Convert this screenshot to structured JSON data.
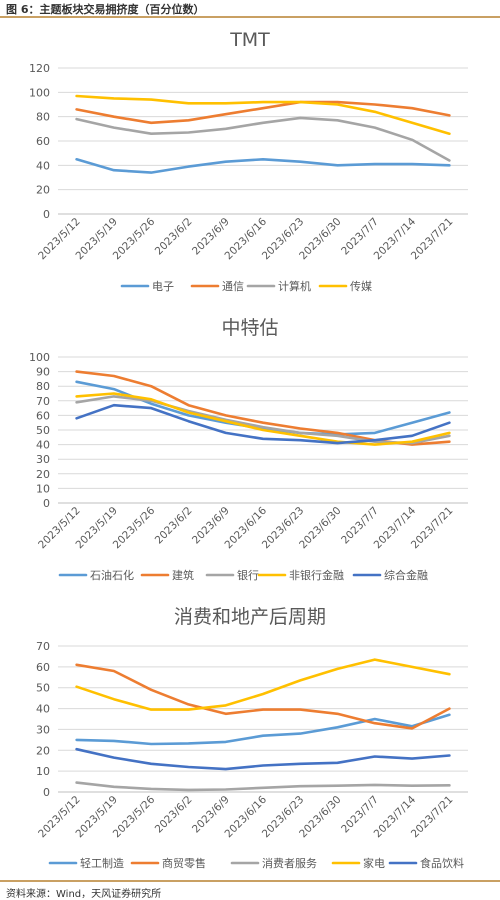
{
  "header": {
    "title": "图 6：主题板块交易拥挤度（百分位数）"
  },
  "footer": {
    "source": "资料来源：Wind，天风证券研究所"
  },
  "chart_data": [
    {
      "type": "line",
      "title": "TMT",
      "categories": [
        "2023/5/12",
        "2023/5/19",
        "2023/5/26",
        "2023/6/2",
        "2023/6/9",
        "2023/6/16",
        "2023/6/23",
        "2023/6/30",
        "2023/7/7",
        "2023/7/14",
        "2023/7/21"
      ],
      "ylim": [
        0,
        120
      ],
      "yticks": [
        0,
        20,
        40,
        60,
        80,
        100,
        120
      ],
      "grid": true,
      "legend_position": "bottom",
      "series": [
        {
          "name": "电子",
          "color": "#5b9bd5",
          "values": [
            45,
            36,
            34,
            39,
            43,
            45,
            43,
            40,
            41,
            41,
            40
          ]
        },
        {
          "name": "通信",
          "color": "#ed7d31",
          "values": [
            86,
            80,
            75,
            77,
            82,
            87,
            92,
            92,
            90,
            87,
            81
          ]
        },
        {
          "name": "计算机",
          "color": "#a5a5a5",
          "values": [
            78,
            71,
            66,
            67,
            70,
            75,
            79,
            77,
            71,
            61,
            44
          ]
        },
        {
          "name": "传媒",
          "color": "#ffc000",
          "values": [
            97,
            95,
            94,
            91,
            91,
            92,
            92,
            90,
            84,
            75,
            66
          ]
        }
      ]
    },
    {
      "type": "line",
      "title": "中特估",
      "categories": [
        "2023/5/12",
        "2023/5/19",
        "2023/5/26",
        "2023/6/2",
        "2023/6/9",
        "2023/6/16",
        "2023/6/23",
        "2023/6/30",
        "2023/7/7",
        "2023/7/14",
        "2023/7/21"
      ],
      "ylim": [
        0,
        100
      ],
      "yticks": [
        0,
        10,
        20,
        30,
        40,
        50,
        60,
        70,
        80,
        90,
        100
      ],
      "grid": true,
      "legend_position": "bottom",
      "series": [
        {
          "name": "石油石化",
          "color": "#5b9bd5",
          "values": [
            83,
            78,
            68,
            60,
            55,
            51,
            48,
            47,
            48,
            55,
            62
          ]
        },
        {
          "name": "建筑",
          "color": "#ed7d31",
          "values": [
            90,
            87,
            80,
            67,
            60,
            55,
            51,
            48,
            43,
            40,
            42
          ]
        },
        {
          "name": "银行",
          "color": "#a5a5a5",
          "values": [
            69,
            73,
            70,
            63,
            57,
            52,
            48,
            46,
            42,
            41,
            46
          ]
        },
        {
          "name": "非银行金融",
          "color": "#ffc000",
          "values": [
            73,
            75,
            71,
            62,
            56,
            50,
            46,
            42,
            40,
            42,
            48
          ]
        },
        {
          "name": "综合金融",
          "color": "#4472c4",
          "values": [
            58,
            67,
            65,
            56,
            48,
            44,
            43,
            41,
            43,
            46,
            55
          ]
        }
      ]
    },
    {
      "type": "line",
      "title": "消费和地产后周期",
      "categories": [
        "2023/5/12",
        "2023/5/19",
        "2023/5/26",
        "2023/6/2",
        "2023/6/9",
        "2023/6/16",
        "2023/6/23",
        "2023/6/30",
        "2023/7/7",
        "2023/7/14",
        "2023/7/21"
      ],
      "ylim": [
        0,
        70
      ],
      "yticks": [
        0,
        10,
        20,
        30,
        40,
        50,
        60,
        70
      ],
      "grid": true,
      "legend_position": "bottom",
      "series": [
        {
          "name": "轻工制造",
          "color": "#5b9bd5",
          "values": [
            25,
            24.5,
            23,
            23.3,
            24,
            27,
            28,
            31,
            35,
            31.5,
            37
          ]
        },
        {
          "name": "商贸零售",
          "color": "#ed7d31",
          "values": [
            61,
            58,
            49,
            42,
            37.5,
            39.5,
            39.5,
            37.5,
            33,
            30.5,
            40
          ]
        },
        {
          "name": "消费者服务",
          "color": "#a5a5a5",
          "values": [
            4.5,
            2.5,
            1.5,
            1.0,
            1.2,
            2.0,
            2.8,
            3.0,
            3.4,
            3.0,
            3.2
          ]
        },
        {
          "name": "家电",
          "color": "#ffc000",
          "values": [
            50.5,
            44.5,
            39.5,
            39.5,
            41.5,
            47,
            53.5,
            59,
            63.5,
            60,
            56.5
          ]
        },
        {
          "name": "食品饮料",
          "color": "#4472c4",
          "values": [
            20.5,
            16.5,
            13.5,
            12,
            11,
            12.7,
            13.5,
            14,
            17,
            16,
            17.5
          ]
        }
      ]
    }
  ]
}
